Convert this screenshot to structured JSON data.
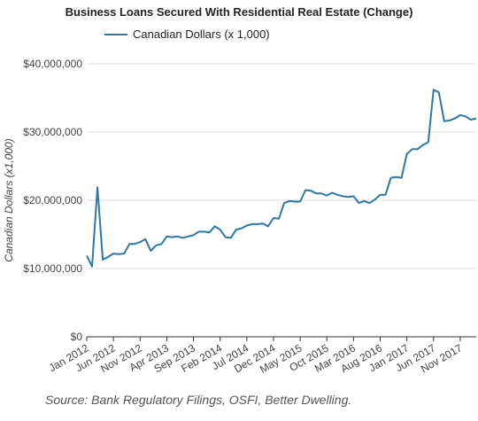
{
  "chart_data": {
    "type": "line",
    "title": "Business Loans Secured With Residential Real Estate (Change)",
    "ylabel": "Canadian Dollars (x1,000)",
    "xlabel": "",
    "legend": "top-left",
    "grid": "horizontal",
    "ylim": [
      0,
      40000000
    ],
    "yticks": [
      "$0",
      "$10,000,000",
      "$20,000,000",
      "$30,000,000",
      "$40,000,000"
    ],
    "xticks": [
      "Jan 2012",
      "Jun 2012",
      "Nov 2012",
      "Apr 2013",
      "Sep 2013",
      "Feb 2014",
      "Jul 2014",
      "Dec 2014",
      "May 2015",
      "Oct 2015",
      "Mar 2016",
      "Aug 2016",
      "Jan 2017",
      "Jun 2017",
      "Nov 2017"
    ],
    "color": "#2e77a6",
    "series": [
      {
        "name": "Canadian Dollars (x 1,000)",
        "x": [
          "2012-01",
          "2012-02",
          "2012-03",
          "2012-04",
          "2012-05",
          "2012-06",
          "2012-07",
          "2012-08",
          "2012-09",
          "2012-10",
          "2012-11",
          "2012-12",
          "2013-01",
          "2013-02",
          "2013-03",
          "2013-04",
          "2013-05",
          "2013-06",
          "2013-07",
          "2013-08",
          "2013-09",
          "2013-10",
          "2013-11",
          "2013-12",
          "2014-01",
          "2014-02",
          "2014-03",
          "2014-04",
          "2014-05",
          "2014-06",
          "2014-07",
          "2014-08",
          "2014-09",
          "2014-10",
          "2014-11",
          "2014-12",
          "2015-01",
          "2015-02",
          "2015-03",
          "2015-04",
          "2015-05",
          "2015-06",
          "2015-07",
          "2015-08",
          "2015-09",
          "2015-10",
          "2015-11",
          "2015-12",
          "2016-01",
          "2016-02",
          "2016-03",
          "2016-04",
          "2016-05",
          "2016-06",
          "2016-07",
          "2016-08",
          "2016-09",
          "2016-10",
          "2016-11",
          "2016-12",
          "2017-01",
          "2017-02",
          "2017-03",
          "2017-04",
          "2017-05",
          "2017-06",
          "2017-07",
          "2017-08",
          "2017-09",
          "2017-10",
          "2017-11",
          "2017-12",
          "2018-01",
          "2018-02"
        ],
        "values": [
          11900000,
          10300000,
          21900000,
          11300000,
          11700000,
          12200000,
          12100000,
          12200000,
          13600000,
          13600000,
          13900000,
          14300000,
          12600000,
          13400000,
          13600000,
          14700000,
          14600000,
          14700000,
          14500000,
          14700000,
          14900000,
          15400000,
          15400000,
          15300000,
          16200000,
          15700000,
          14600000,
          14500000,
          15700000,
          15900000,
          16300000,
          16500000,
          16500000,
          16600000,
          16200000,
          17400000,
          17300000,
          19600000,
          19900000,
          19800000,
          19800000,
          21500000,
          21400000,
          21000000,
          21000000,
          20700000,
          21100000,
          20800000,
          20600000,
          20500000,
          20600000,
          19600000,
          19900000,
          19600000,
          20100000,
          20800000,
          20800000,
          23300000,
          23400000,
          23300000,
          26800000,
          27500000,
          27500000,
          28100000,
          28500000,
          36200000,
          35800000,
          31600000,
          31700000,
          32000000,
          32500000,
          32300000,
          31800000,
          32000000
        ]
      }
    ]
  },
  "legend_label": "Canadian Dollars (x 1,000)",
  "source_note": "Source: Bank Regulatory Filings, OSFI, Better Dwelling."
}
